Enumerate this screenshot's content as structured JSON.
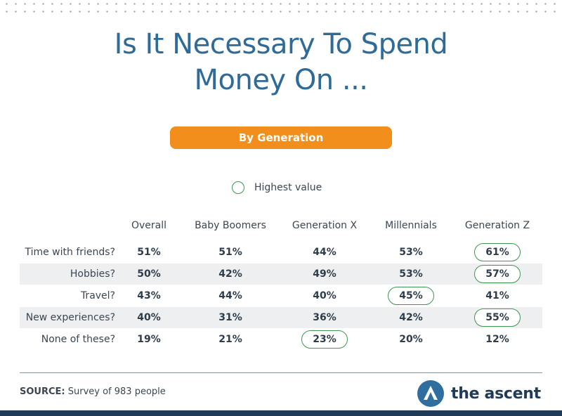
{
  "title_line1": "Is It Necessary To Spend",
  "title_line2": "Money On ...",
  "subtitle": "By Generation",
  "legend_label": "Highest value",
  "source_label": "SOURCE:",
  "source_text": "Survey of 983 people",
  "brand": "the ascent",
  "colors": {
    "title": "#2f6b98",
    "pill": "#f28f1c",
    "highlight": "#3f9552",
    "brand": "#1f3b57"
  },
  "chart_data": {
    "type": "table",
    "columns": [
      "Overall",
      "Baby Boomers",
      "Generation X",
      "Millennials",
      "Generation Z"
    ],
    "rows": [
      {
        "label": "Time with friends?",
        "values": [
          "51%",
          "51%",
          "44%",
          "53%",
          "61%"
        ],
        "highlight": 4
      },
      {
        "label": "Hobbies?",
        "values": [
          "50%",
          "42%",
          "49%",
          "53%",
          "57%"
        ],
        "highlight": 4
      },
      {
        "label": "Travel?",
        "values": [
          "43%",
          "44%",
          "40%",
          "45%",
          "41%"
        ],
        "highlight": 3
      },
      {
        "label": "New experiences?",
        "values": [
          "40%",
          "31%",
          "36%",
          "42%",
          "55%"
        ],
        "highlight": 4
      },
      {
        "label": "None of these?",
        "values": [
          "19%",
          "21%",
          "23%",
          "20%",
          "12%"
        ],
        "highlight": 2
      }
    ]
  }
}
